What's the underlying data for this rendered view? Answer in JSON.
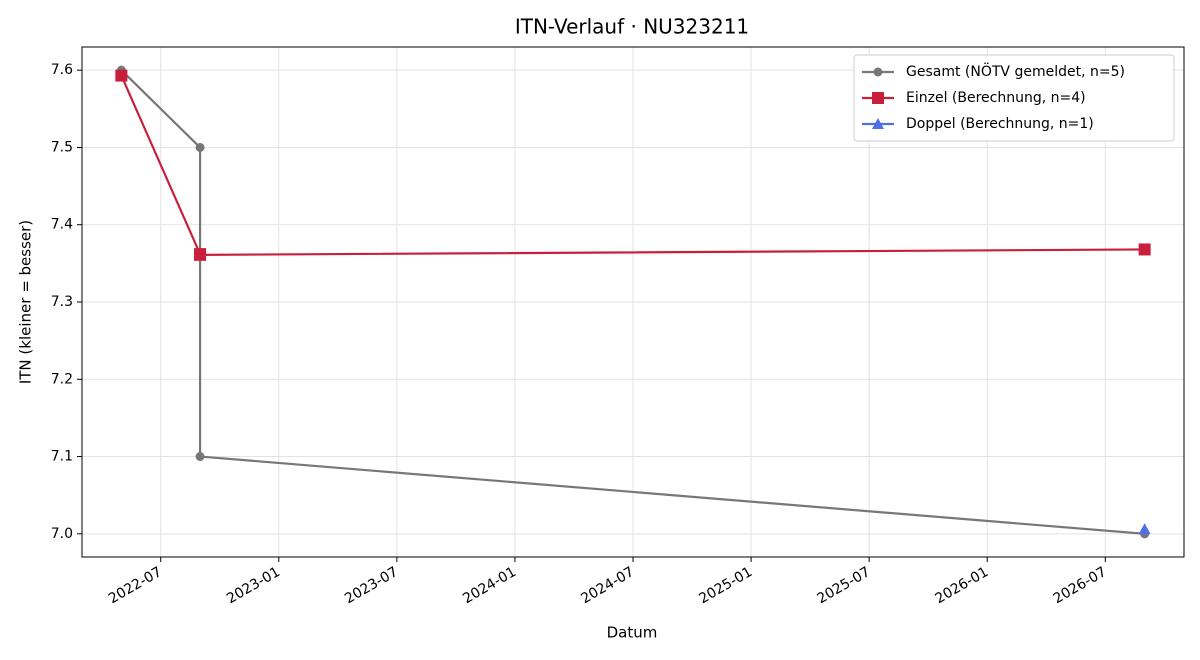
{
  "chart_data": {
    "type": "line",
    "title": "ITN-Verlauf · NU323211",
    "xlabel": "Datum",
    "ylabel": "ITN  (kleiner = besser)",
    "xlim": [
      "2022-03",
      "2026-11"
    ],
    "xticks": [
      "2022-07",
      "2023-01",
      "2023-07",
      "2024-01",
      "2024-07",
      "2025-01",
      "2025-07",
      "2026-01",
      "2026-07"
    ],
    "ylim": [
      6.97,
      7.63
    ],
    "yticks": [
      {
        "value": 7,
        "label": "7.0"
      },
      7.1,
      7.2,
      7.3,
      7.4,
      7.5,
      7.6
    ],
    "grid": true,
    "legend": "upper right",
    "series": [
      {
        "name": "Gesamt (NÖTV gemeldet, n=5)",
        "color": "#777777",
        "marker": "circle",
        "x": [
          "2022-05",
          "2022-09",
          "2022-09",
          "2026-09"
        ],
        "values": [
          7.6,
          7.5,
          7.1,
          7.0
        ]
      },
      {
        "name": "Einzel (Berechnung, n=4)",
        "color": "#c8203c",
        "marker": "square",
        "x": [
          "2022-05",
          "2022-09",
          "2022-09",
          "2026-09"
        ],
        "values": [
          7.593,
          7.362,
          7.361,
          7.368
        ]
      },
      {
        "name": "Doppel (Berechnung, n=1)",
        "color": "#4f6fe8",
        "marker": "triangle",
        "x": [
          "2026-09"
        ],
        "values": [
          7.006
        ]
      }
    ]
  }
}
